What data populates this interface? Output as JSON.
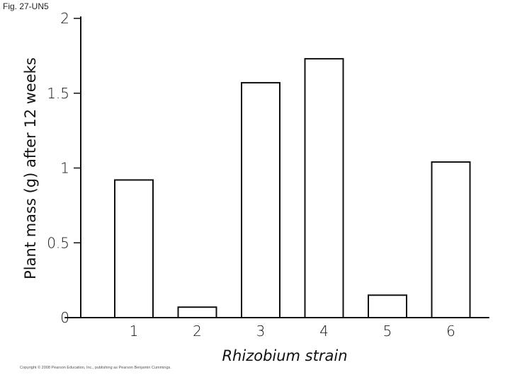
{
  "figure_label": "Fig. 27-UN5",
  "copyright": "Copyright © 2008 Pearson Education, Inc., publishing as Pearson Benjamin Cummings.",
  "chart_data": {
    "type": "bar",
    "title": "",
    "xlabel": "Rhizobium strain",
    "ylabel": "Plant mass (g) after 12 weeks",
    "categories": [
      "1",
      "2",
      "3",
      "4",
      "5",
      "6"
    ],
    "values": [
      0.92,
      0.07,
      1.57,
      1.73,
      0.15,
      1.04
    ],
    "ylim": [
      0,
      2
    ],
    "yticks": [
      {
        "value": 0,
        "label": "0"
      },
      {
        "value": 0.5,
        "label": "0.5"
      },
      {
        "value": 1,
        "label": "1"
      },
      {
        "value": 1.5,
        "label": "1.5"
      },
      {
        "value": 2,
        "label": "2"
      }
    ],
    "grid": false
  }
}
